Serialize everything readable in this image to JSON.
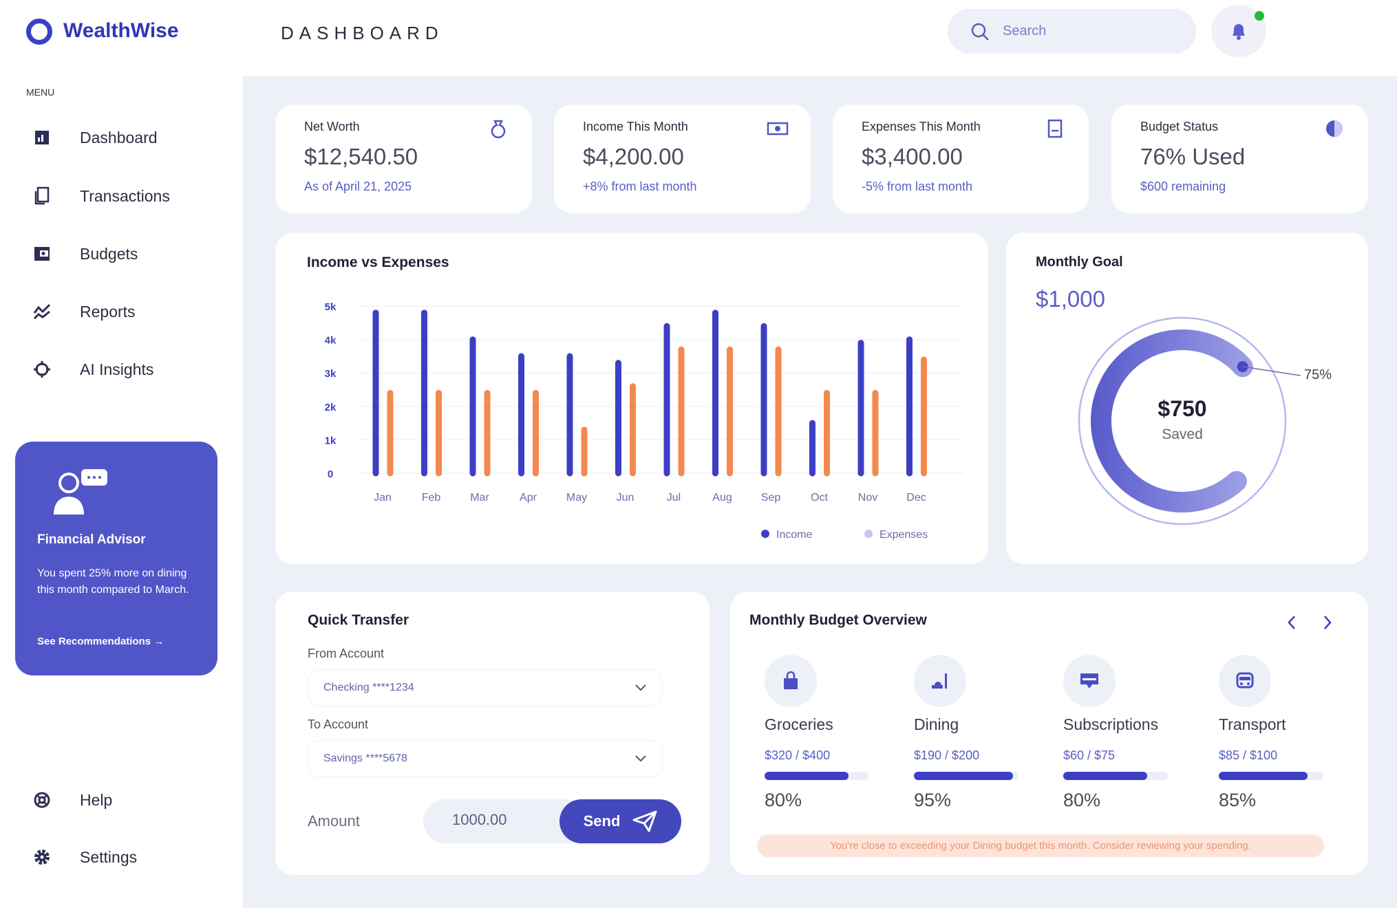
{
  "brand": "WealthWise",
  "sidebar": {
    "menu_label": "MENU",
    "items": [
      {
        "label": "Dashboard"
      },
      {
        "label": "Transactions"
      },
      {
        "label": "Budgets"
      },
      {
        "label": "Reports"
      },
      {
        "label": "AI Insights"
      }
    ],
    "advisor": {
      "title": "Financial Advisor",
      "text": "You spent 25% more on dining this month compared to March.",
      "link": "See Recommendations →"
    },
    "bottom": [
      {
        "label": "Help"
      },
      {
        "label": "Settings"
      }
    ]
  },
  "header": {
    "title": "DASHBOARD",
    "search_placeholder": "Search"
  },
  "stats": [
    {
      "title": "Net Worth",
      "value": "$12,540.50",
      "sub": "As of April 21, 2025"
    },
    {
      "title": "Income This Month",
      "value": "$4,200.00",
      "sub": "+8% from last month"
    },
    {
      "title": "Expenses This Month",
      "value": "$3,400.00",
      "sub": "-5% from last month"
    },
    {
      "title": "Budget Status",
      "value": "76% Used",
      "sub": "$600 remaining"
    }
  ],
  "chart_data": {
    "type": "bar",
    "title": "Income vs Expenses",
    "categories": [
      "Jan",
      "Feb",
      "Mar",
      "Apr",
      "May",
      "Jun",
      "Jul",
      "Aug",
      "Sep",
      "Oct",
      "Nov",
      "Dec"
    ],
    "series": [
      {
        "name": "Income",
        "color": "#3c3fc4",
        "values": [
          4800,
          4800,
          4000,
          3500,
          3500,
          3300,
          4400,
          4800,
          4400,
          1500,
          3900,
          4000
        ]
      },
      {
        "name": "Expenses",
        "color": "#f4894f",
        "values": [
          2400,
          2400,
          2400,
          2400,
          1300,
          2600,
          3700,
          3700,
          3700,
          2400,
          2400,
          3400
        ]
      }
    ],
    "yticks": [
      "0",
      "1k",
      "2k",
      "3k",
      "4k",
      "5k"
    ],
    "ylim": [
      0,
      5000
    ],
    "legend": "bottom-right"
  },
  "goal": {
    "title": "Monthly Goal",
    "target": "$1,000",
    "saved": "$750",
    "saved_label": "Saved",
    "percent_label": "75%",
    "percent": 75
  },
  "transfer": {
    "title": "Quick Transfer",
    "from_label": "From Account",
    "from_value": "Checking ****1234",
    "to_label": "To Account",
    "to_value": "Savings ****5678",
    "amount_label": "Amount",
    "amount_value": "1000.00",
    "send": "Send"
  },
  "budget": {
    "title": "Monthly Budget Overview",
    "items": [
      {
        "name": "Groceries",
        "amount": "$320 / $400",
        "pct": "80%",
        "fill": 80
      },
      {
        "name": "Dining",
        "amount": "$190 / $200",
        "pct": "95%",
        "fill": 95
      },
      {
        "name": "Subscriptions",
        "amount": "$60 / $75",
        "pct": "80%",
        "fill": 80
      },
      {
        "name": "Transport",
        "amount": "$85 / $100",
        "pct": "85%",
        "fill": 85
      }
    ],
    "alert": "You're close to exceeding your Dining budget this month. Consider reviewing your spending."
  },
  "colors": {
    "accent": "#3c3fc4",
    "advisor": "#5055c8",
    "expense": "#f4894f"
  }
}
